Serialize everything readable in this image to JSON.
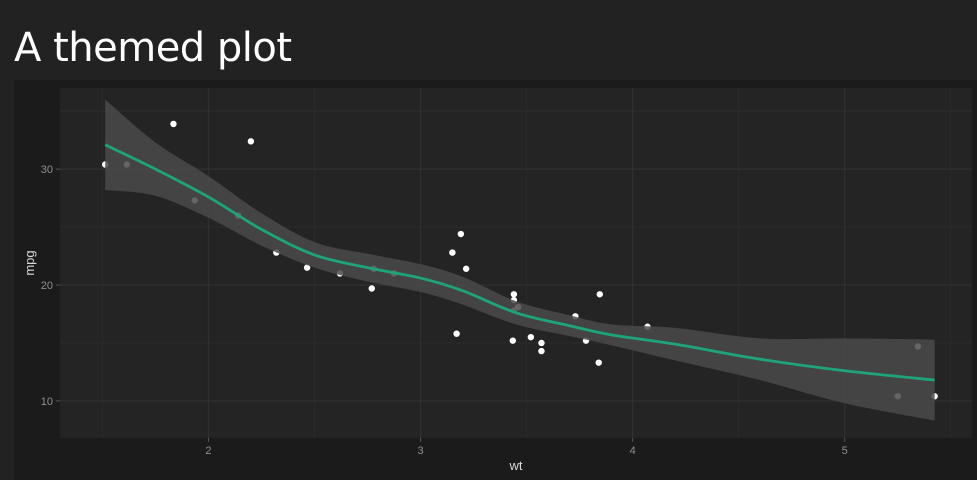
{
  "page": {
    "title": "A themed plot"
  },
  "colors": {
    "background": "#222222",
    "panel": "#1b1b1b",
    "plot_area": "#242424",
    "grid": "#303030",
    "ribbon": "#4a4a4a",
    "line": "#1ea47a",
    "points": "#ffffff",
    "text": "#d8d8d8"
  },
  "chart_data": {
    "type": "scatter",
    "title": "",
    "xlabel": "wt",
    "ylabel": "mpg",
    "xlim": [
      1.3,
      5.6
    ],
    "ylim": [
      6.8,
      37.0
    ],
    "xticks": [
      2,
      3,
      4,
      5
    ],
    "yticks": [
      10,
      20,
      30
    ],
    "grid": true,
    "points": [
      {
        "x": 1.513,
        "y": 30.4
      },
      {
        "x": 1.615,
        "y": 30.4
      },
      {
        "x": 1.835,
        "y": 33.9
      },
      {
        "x": 1.935,
        "y": 27.3
      },
      {
        "x": 2.14,
        "y": 26.0
      },
      {
        "x": 2.2,
        "y": 32.4
      },
      {
        "x": 2.32,
        "y": 22.8
      },
      {
        "x": 2.465,
        "y": 21.5
      },
      {
        "x": 2.62,
        "y": 21.0
      },
      {
        "x": 2.77,
        "y": 19.7
      },
      {
        "x": 2.78,
        "y": 21.4
      },
      {
        "x": 2.875,
        "y": 21.0
      },
      {
        "x": 3.15,
        "y": 22.8
      },
      {
        "x": 3.17,
        "y": 15.8
      },
      {
        "x": 3.19,
        "y": 24.4
      },
      {
        "x": 3.215,
        "y": 21.4
      },
      {
        "x": 3.435,
        "y": 15.2
      },
      {
        "x": 3.44,
        "y": 17.8
      },
      {
        "x": 3.44,
        "y": 18.7
      },
      {
        "x": 3.44,
        "y": 19.2
      },
      {
        "x": 3.46,
        "y": 18.1
      },
      {
        "x": 3.52,
        "y": 15.5
      },
      {
        "x": 3.57,
        "y": 15.0
      },
      {
        "x": 3.57,
        "y": 14.3
      },
      {
        "x": 3.73,
        "y": 17.3
      },
      {
        "x": 3.78,
        "y": 15.2
      },
      {
        "x": 3.84,
        "y": 13.3
      },
      {
        "x": 3.845,
        "y": 19.2
      },
      {
        "x": 4.07,
        "y": 16.4
      },
      {
        "x": 5.25,
        "y": 10.4
      },
      {
        "x": 5.345,
        "y": 14.7
      },
      {
        "x": 5.424,
        "y": 10.4
      }
    ],
    "smooth": {
      "method": "loess",
      "x": [
        1.513,
        1.75,
        2.0,
        2.25,
        2.5,
        2.75,
        3.0,
        3.2,
        3.45,
        3.7,
        3.9,
        4.2,
        4.6,
        5.0,
        5.424
      ],
      "y": [
        32.1,
        30.0,
        27.6,
        24.8,
        22.6,
        21.5,
        20.6,
        19.5,
        17.6,
        16.5,
        15.7,
        14.9,
        13.6,
        12.6,
        11.8
      ],
      "lower": [
        28.2,
        27.7,
        25.8,
        23.4,
        21.5,
        20.3,
        19.4,
        18.3,
        16.6,
        15.6,
        14.8,
        13.5,
        11.8,
        9.8,
        8.3
      ],
      "upper": [
        36.0,
        32.3,
        29.4,
        26.2,
        23.7,
        22.7,
        21.8,
        20.7,
        18.6,
        17.4,
        16.6,
        16.3,
        15.4,
        15.4,
        15.3
      ]
    }
  }
}
